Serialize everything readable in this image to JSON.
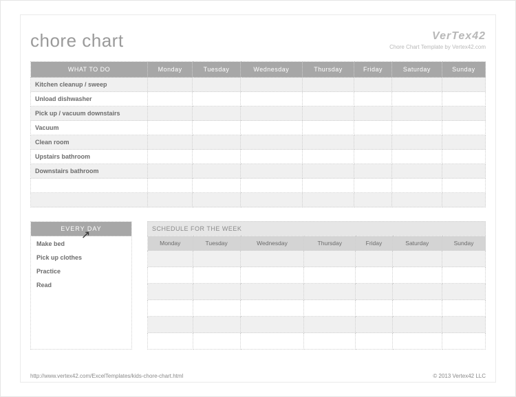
{
  "title": "chore chart",
  "brand": {
    "logo": "VerTex42",
    "tagline": "Chore Chart Template by Vertex42.com"
  },
  "main_table": {
    "first_header": "WHAT TO DO",
    "days": [
      "Monday",
      "Tuesday",
      "Wednesday",
      "Thursday",
      "Friday",
      "Saturday",
      "Sunday"
    ],
    "chores": [
      "Kitchen cleanup / sweep",
      "Unload dishwasher",
      "Pick up / vacuum downstairs",
      "Vacuum",
      "Clean room",
      "Upstairs bathroom",
      "Downstairs bathroom",
      "",
      ""
    ],
    "header_bg": "#a7a7a7",
    "header_color": "#ffffff",
    "row_alt_bg": "#f0f0f0",
    "border_color": "#cfcfcf"
  },
  "every_day": {
    "header": "EVERY DAY",
    "items": [
      "Make bed",
      "Pick up clothes",
      "Practice",
      "Read"
    ]
  },
  "schedule": {
    "title": "SCHEDULE FOR THE WEEK",
    "days": [
      "Monday",
      "Tuesday",
      "Wednesday",
      "Thursday",
      "Friday",
      "Saturday",
      "Sunday"
    ],
    "row_count": 6,
    "header_bg": "#d4d4d4",
    "title_bg": "#e6e6e6"
  },
  "footer": {
    "url": "http://www.vertex42.com/ExcelTemplates/kids-chore-chart.html",
    "copyright": "© 2013 Vertex42 LLC"
  }
}
